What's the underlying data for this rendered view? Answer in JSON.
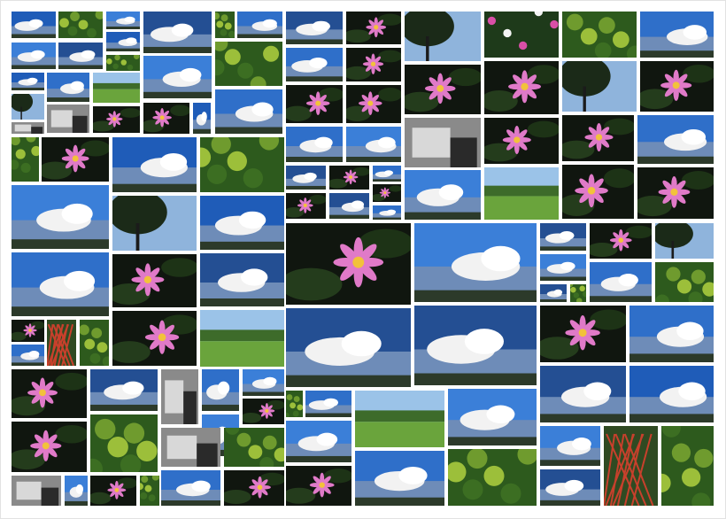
{
  "collage": {
    "theme_colors": {
      "sky": "#2f6fc9",
      "cloud": "#f2f2f2",
      "foliage": "#2d5a1d",
      "lotus": "#e07ac8",
      "background": "#ffffff"
    },
    "tile_kinds": [
      "sky",
      "lotus",
      "green",
      "field",
      "tree",
      "bw",
      "red",
      "flower"
    ]
  }
}
